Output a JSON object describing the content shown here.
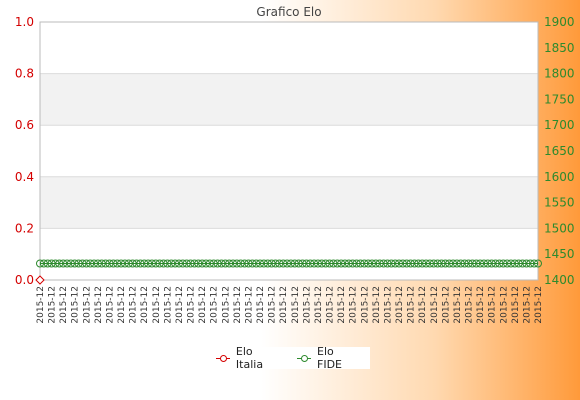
{
  "chart_data": {
    "type": "line",
    "title": "Grafico Elo",
    "x_tick_label": "2015-12",
    "grid": true,
    "legend_position": "bottom-center",
    "y_left": {
      "ticks": [
        "0.0",
        "0.2",
        "0.4",
        "0.6",
        "0.8",
        "1.0"
      ],
      "ylim": [
        0,
        1
      ]
    },
    "y_right": {
      "ticks": [
        "1400",
        "1450",
        "1500",
        "1550",
        "1600",
        "1650",
        "1700",
        "1750",
        "1800",
        "1850",
        "1900"
      ],
      "ylim": [
        1400,
        1900
      ]
    },
    "series": [
      {
        "name": "Elo Italia",
        "axis": "left",
        "color": "#d40000",
        "values": [
          0
        ]
      },
      {
        "name": "Elo FIDE",
        "axis": "right",
        "color": "#2d8a2d",
        "values": [
          1432,
          1432,
          1432,
          1432,
          1432,
          1432,
          1432,
          1432,
          1432,
          1432,
          1432,
          1432,
          1432,
          1432,
          1432,
          1432,
          1432,
          1432,
          1432,
          1432,
          1432,
          1432,
          1432,
          1432,
          1432,
          1432,
          1432,
          1432,
          1432,
          1432,
          1432,
          1432,
          1432,
          1432,
          1432,
          1432,
          1432,
          1432,
          1432,
          1432,
          1432,
          1432,
          1432,
          1432,
          1432,
          1432,
          1432,
          1432,
          1432,
          1432,
          1432,
          1432,
          1432,
          1432,
          1432,
          1432,
          1432,
          1432,
          1432,
          1432,
          1432,
          1432,
          1432,
          1432,
          1432,
          1432,
          1432,
          1432,
          1432,
          1432,
          1432,
          1432,
          1432,
          1432,
          1432,
          1432,
          1432,
          1432,
          1432,
          1432,
          1432,
          1432,
          1432,
          1432,
          1432,
          1432,
          1432,
          1432,
          1432,
          1432,
          1432,
          1432,
          1432,
          1432,
          1432,
          1432,
          1432,
          1432,
          1432,
          1432,
          1432,
          1432,
          1432,
          1432,
          1432,
          1432,
          1432,
          1432,
          1432,
          1432,
          1432,
          1432,
          1432,
          1432,
          1432,
          1432,
          1432,
          1432,
          1432,
          1432,
          1432,
          1432,
          1432,
          1432,
          1432,
          1432,
          1432,
          1432,
          1432,
          1432
        ]
      }
    ]
  }
}
